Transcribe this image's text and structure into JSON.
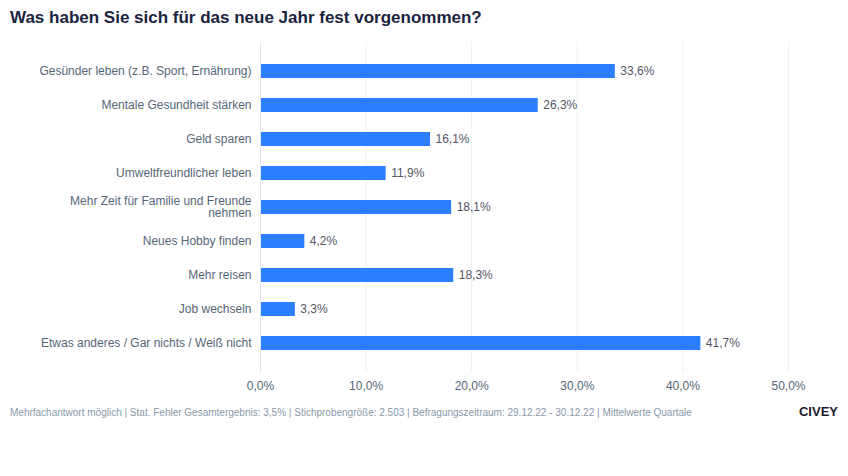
{
  "chart_data": {
    "type": "bar",
    "orientation": "horizontal",
    "title": "Was haben Sie sich für das neue Jahr fest vorgenommen?",
    "categories": [
      "Etwas anderes / Gar nichts / Weiß nicht",
      "Job wechseln",
      "Mehr reisen",
      "Neues Hobby finden",
      "Mehr Zeit für Familie und Freunde\nnehmen",
      "Umweltfreundlicher leben",
      "Geld sparen",
      "Mentale Gesundheit stärken",
      "Gesünder leben (z.B. Sport, Ernährung)"
    ],
    "values": [
      41.7,
      3.3,
      18.3,
      4.2,
      18.1,
      11.9,
      16.1,
      26.3,
      33.6
    ],
    "value_labels": [
      "41,7%",
      "3,3%",
      "18,3%",
      "4,2%",
      "18,1%",
      "11,9%",
      "16,1%",
      "26,3%",
      "33,6%"
    ],
    "data_labels": true,
    "color": "#2b7fff",
    "xlim": [
      0,
      50
    ],
    "xticks": [
      {
        "value": 0,
        "label": "0,0%"
      },
      {
        "value": 10,
        "label": "10,0%"
      },
      {
        "value": 20,
        "label": "20,0%"
      },
      {
        "value": 30,
        "label": "30,0%"
      },
      {
        "value": 40,
        "label": "40,0%"
      },
      {
        "value": 50,
        "label": "50,0%"
      }
    ],
    "grid": true,
    "annotations": [
      "Mehrfachantwort möglich | Stat. Fehler Gesamtergebnis: 3,5% | Stichprobengröße: 2.503 | Befragungszeitraum: 29.12.22 - 30.12.22 | Mittelwerte Quartale",
      "CIVEY"
    ]
  }
}
